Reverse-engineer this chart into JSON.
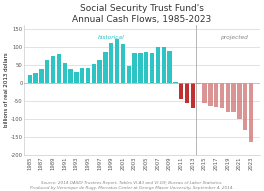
{
  "title": "Social Security Trust Fund's\nAnnual Cash Flows, 1985-2023",
  "ylabel": "billions of real 2013 dollars",
  "source_note": "Source: 2014 OASDI Trustees Report, Tables VI.A3 and VI.G9; Bureau of Labor Statistics.\nProduced by Veronique de Rugy, Mercatus Center at George Mason University, September 4, 2014.",
  "ylim": [
    -200,
    160
  ],
  "yticks": [
    -200,
    -150,
    -100,
    -50,
    0,
    50,
    100,
    150
  ],
  "years": [
    1985,
    1986,
    1987,
    1988,
    1989,
    1990,
    1991,
    1992,
    1993,
    1994,
    1995,
    1996,
    1997,
    1998,
    1999,
    2000,
    2001,
    2002,
    2003,
    2004,
    2005,
    2006,
    2007,
    2008,
    2009,
    2010,
    2011,
    2012,
    2013,
    2014,
    2015,
    2016,
    2017,
    2018,
    2019,
    2020,
    2021,
    2022,
    2023
  ],
  "values": [
    20,
    28,
    38,
    62,
    73,
    80,
    55,
    38,
    30,
    42,
    40,
    52,
    62,
    85,
    110,
    120,
    108,
    47,
    82,
    82,
    85,
    82,
    98,
    100,
    88,
    3,
    -45,
    -55,
    -70,
    -5,
    -55,
    -65,
    -68,
    -70,
    -80,
    -82,
    -100,
    -130,
    -165
  ],
  "historical_color": "#2EC4C4",
  "projected_hist_color": "#C03030",
  "projected_future_color": "#D07070",
  "historical_label": "historical",
  "projected_label": "projected",
  "divider_year": 2013.5,
  "background_color": "#ffffff",
  "plot_bg_color": "#f0f0ec",
  "title_fontsize": 6.5,
  "label_fontsize": 4.0,
  "tick_fontsize": 3.8,
  "source_fontsize": 3.0,
  "annotation_fontsize": 4.2
}
